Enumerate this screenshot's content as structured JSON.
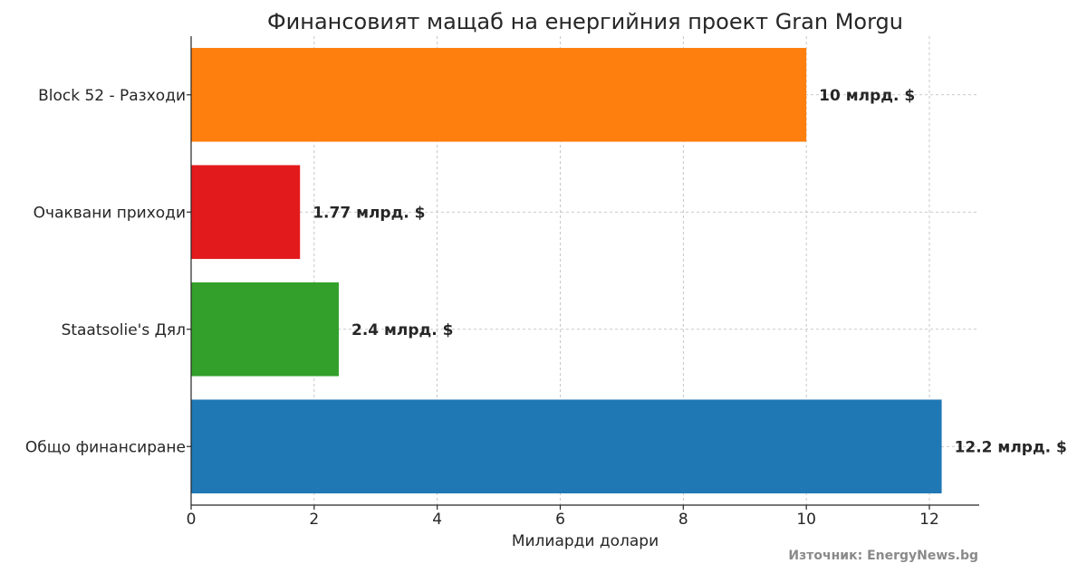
{
  "chart_data": {
    "type": "bar",
    "orientation": "horizontal",
    "title": "Финансовият мащаб на енергийния проект Gran Morgu",
    "xlabel": "Милиарди долари",
    "ylabel": "",
    "xlim": [
      0,
      12.81
    ],
    "xticks": [
      0,
      2,
      4,
      6,
      8,
      10,
      12
    ],
    "grid": true,
    "categories": [
      "Block 52 - Разходи",
      "Очаквани приходи",
      "Staatsolie's Дял",
      "Общо финансиране"
    ],
    "values": [
      10,
      1.77,
      2.4,
      12.2
    ],
    "colors": [
      "#ff7f0e",
      "#e31a1c",
      "#33a02c",
      "#1f77b4"
    ],
    "value_labels": [
      "10 млрд. $",
      "1.77 млрд. $",
      "2.4 млрд. $",
      "12.2 млрд. $"
    ]
  },
  "source_note": "Източник: EnergyNews.bg"
}
